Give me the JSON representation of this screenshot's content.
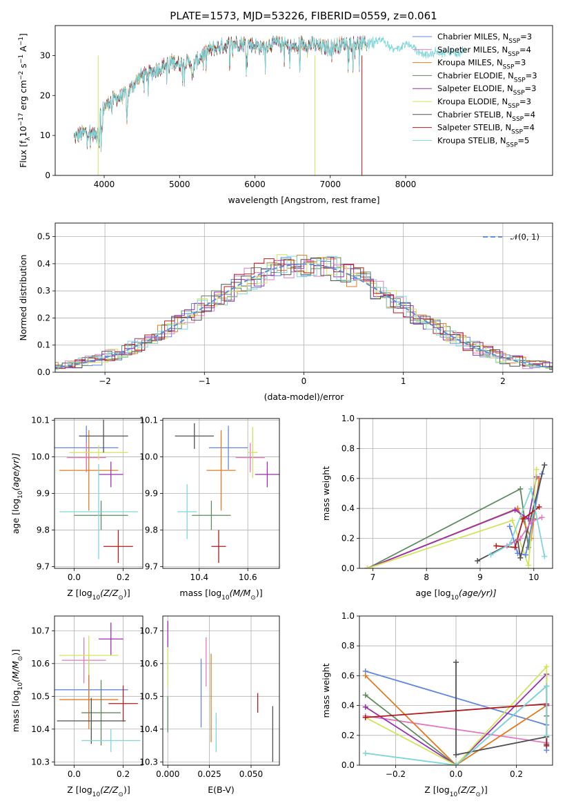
{
  "figure": {
    "title": "PLATE=1573, MJD=53226, FIBERID=0559, z=0.061"
  },
  "colors": {
    "cm": "#6286e6",
    "sm": "#e377c2",
    "km": "#e07b1f",
    "ce": "#5f8a5f",
    "se": "#9b2fae",
    "ke": "#d2e35a",
    "cs": "#505050",
    "ss": "#b01a1a",
    "ks": "#7ed6d9",
    "normal": "#5b8fd6"
  },
  "legend_spectrum": [
    {
      "key": "cm",
      "label": "Chabrier MILES, N",
      "sub": "SSP",
      "suffix": "=3"
    },
    {
      "key": "sm",
      "label": "Salpeter MILES, N",
      "sub": "SSP",
      "suffix": "=4"
    },
    {
      "key": "km",
      "label": "Kroupa MILES, N",
      "sub": "SSP",
      "suffix": "=3"
    },
    {
      "key": "ce",
      "label": "Chabrier ELODIE, N",
      "sub": "SSP",
      "suffix": "=3"
    },
    {
      "key": "se",
      "label": "Salpeter ELODIE, N",
      "sub": "SSP",
      "suffix": "=3"
    },
    {
      "key": "ke",
      "label": "Kroupa ELODIE, N",
      "sub": "SSP",
      "suffix": "=3"
    },
    {
      "key": "cs",
      "label": "Chabrier STELIB, N",
      "sub": "SSP",
      "suffix": "=4"
    },
    {
      "key": "ss",
      "label": "Salpeter STELIB, N",
      "sub": "SSP",
      "suffix": "=4"
    },
    {
      "key": "ks",
      "label": "Kroupa STELIB, N",
      "sub": "SSP",
      "suffix": "=5"
    }
  ],
  "legend_normal": "𝒩(0, 1)",
  "chart_data": [
    {
      "id": "spectrum",
      "type": "line",
      "xlabel": "wavelength [Angstrom, rest frame]",
      "ylabel": "Flux [f",
      "ylabel_sub": "λ",
      "ylabel_rest": "10",
      "ylabel_sup": "−17",
      "ylabel_tail": " erg cm",
      "ylabel_sup2": "−2",
      "ylabel_tail2": " s",
      "ylabel_sup3": "−1",
      "ylabel_tail3": " A",
      "ylabel_sup4": "−1",
      "ylabel_end": "]",
      "xlim": [
        3350,
        9950
      ],
      "ylim": [
        0,
        37.5
      ],
      "xticks": [
        4000,
        5000,
        6000,
        7000,
        8000
      ],
      "yticks": [
        0,
        10,
        20,
        30
      ],
      "xtick_labels": [
        "4000",
        "5000",
        "6000",
        "7000",
        "8000"
      ],
      "ytick_labels": [
        "0",
        "10",
        "20",
        "30"
      ],
      "continuum": [
        [
          3600,
          9.5
        ],
        [
          3700,
          10.5
        ],
        [
          3800,
          11
        ],
        [
          3900,
          10
        ],
        [
          3950,
          15.5
        ],
        [
          4000,
          17
        ],
        [
          4100,
          19
        ],
        [
          4200,
          19.5
        ],
        [
          4300,
          20.5
        ],
        [
          4400,
          23
        ],
        [
          4500,
          25
        ],
        [
          4600,
          25.5
        ],
        [
          4700,
          26.5
        ],
        [
          4800,
          27.5
        ],
        [
          4900,
          28.5
        ],
        [
          5000,
          28
        ],
        [
          5100,
          28.5
        ],
        [
          5200,
          28
        ],
        [
          5300,
          30
        ],
        [
          5400,
          31.5
        ],
        [
          5500,
          32
        ],
        [
          5600,
          32.5
        ],
        [
          5700,
          33
        ],
        [
          5800,
          33
        ],
        [
          5900,
          33
        ],
        [
          6000,
          32.5
        ],
        [
          6100,
          32
        ],
        [
          6200,
          33
        ],
        [
          6300,
          33
        ],
        [
          6400,
          32.5
        ],
        [
          6500,
          32
        ],
        [
          6600,
          33
        ],
        [
          6700,
          33
        ],
        [
          6800,
          32.5
        ],
        [
          6900,
          32
        ],
        [
          7000,
          32
        ],
        [
          7100,
          32.5
        ],
        [
          7200,
          33
        ],
        [
          7300,
          33
        ],
        [
          7400,
          33
        ],
        [
          7500,
          33
        ],
        [
          7600,
          34
        ],
        [
          7700,
          33.5
        ],
        [
          7800,
          32
        ],
        [
          7900,
          31.5
        ],
        [
          8000,
          33
        ],
        [
          8100,
          32
        ],
        [
          8200,
          30.5
        ],
        [
          8300,
          30
        ],
        [
          8400,
          31
        ],
        [
          8500,
          30.5
        ],
        [
          8600,
          31
        ],
        [
          8700,
          30.5
        ],
        [
          8800,
          31.5
        ]
      ],
      "spikes": [
        {
          "x": 3920,
          "key": "ke"
        },
        {
          "x": 6795,
          "key": "ke"
        },
        {
          "x": 7420,
          "key": "ss"
        }
      ]
    },
    {
      "id": "residuals",
      "type": "histogram",
      "xlabel": "(data-model)/error",
      "ylabel": "Normed distribution",
      "xlim": [
        -2.5,
        2.5
      ],
      "ylim": [
        0,
        0.55
      ],
      "xticks": [
        -2,
        -1,
        0,
        1,
        2
      ],
      "yticks": [
        0,
        0.1,
        0.2,
        0.3,
        0.4,
        0.5
      ],
      "xtick_labels": [
        "−2",
        "−1",
        "0",
        "1",
        "2"
      ],
      "ytick_labels": [
        "0.0",
        "0.1",
        "0.2",
        "0.3",
        "0.4",
        "0.5"
      ],
      "bin_width": 0.1
    },
    {
      "id": "age_vs_Z",
      "type": "errorbar",
      "xlabel": "Z [log",
      "xlabel_sub": "10",
      "xlabel_rest": "(Z/Z",
      "xlabel_sub2": "⊙",
      "xlabel_end": ")]",
      "ylabel": "age  [log",
      "ylabel_sub": "10",
      "ylabel_rest": "(age/yr)]",
      "xlim": [
        -0.08,
        0.28
      ],
      "ylim": [
        9.695,
        10.105
      ],
      "xticks": [
        0,
        0.2
      ],
      "yticks": [
        9.7,
        9.8,
        9.9,
        10.0,
        10.1
      ],
      "xtick_labels": [
        "0.0",
        "0.2"
      ],
      "ytick_labels": [
        "9.7",
        "9.8",
        "9.9",
        "10.0",
        "10.1"
      ],
      "points": [
        {
          "key": "cm",
          "x": 0.05,
          "xe": 0.13,
          "y": 10.025,
          "ye": 0.06
        },
        {
          "key": "sm",
          "x": 0.05,
          "xe": 0.08,
          "y": 9.998,
          "ye": 0.04
        },
        {
          "key": "km",
          "x": 0.06,
          "xe": 0.12,
          "y": 9.963,
          "ye": 0.11
        },
        {
          "key": "ce",
          "x": 0.11,
          "xe": 0.11,
          "y": 9.84,
          "ye": 0.04
        },
        {
          "key": "se",
          "x": 0.15,
          "xe": 0.05,
          "y": 9.952,
          "ye": 0.035
        },
        {
          "key": "ke",
          "x": 0.1,
          "xe": 0.12,
          "y": 10.012,
          "ye": 0.02
        },
        {
          "key": "cs",
          "x": 0.12,
          "xe": 0.1,
          "y": 10.057,
          "ye": 0.045
        },
        {
          "key": "ss",
          "x": 0.18,
          "xe": 0.06,
          "y": 9.755,
          "ye": 0.045
        },
        {
          "key": "ks",
          "x": 0.1,
          "xe": 0.16,
          "y": 9.85,
          "ye": 0.13
        }
      ]
    },
    {
      "id": "age_vs_mass",
      "type": "errorbar",
      "xlabel": "mass [log",
      "xlabel_sub": "10",
      "xlabel_rest": "(M/M",
      "xlabel_sub2": "⊙",
      "xlabel_end": ")]",
      "xlim": [
        10.25,
        10.73
      ],
      "ylim": [
        9.695,
        10.105
      ],
      "xticks": [
        10.4,
        10.6
      ],
      "yticks": [
        9.7,
        9.8,
        9.9,
        10.0,
        10.1
      ],
      "xtick_labels": [
        "10.4",
        "10.6"
      ],
      "ytick_labels": [
        "9.7",
        "9.8",
        "9.9",
        "10.0",
        "10.1"
      ],
      "points": [
        {
          "key": "cm",
          "x": 10.52,
          "xe": 0.08,
          "y": 10.025,
          "ye": 0.06
        },
        {
          "key": "sm",
          "x": 10.61,
          "xe": 0.06,
          "y": 9.998,
          "ye": 0.04
        },
        {
          "key": "km",
          "x": 10.49,
          "xe": 0.06,
          "y": 9.963,
          "ye": 0.11
        },
        {
          "key": "ce",
          "x": 10.45,
          "xe": 0.08,
          "y": 9.84,
          "ye": 0.04
        },
        {
          "key": "se",
          "x": 10.68,
          "xe": 0.05,
          "y": 9.952,
          "ye": 0.035
        },
        {
          "key": "ke",
          "x": 10.62,
          "xe": 0.02,
          "y": 10.012,
          "ye": 0.07
        },
        {
          "key": "cs",
          "x": 10.38,
          "xe": 0.08,
          "y": 10.057,
          "ye": 0.035
        },
        {
          "key": "ss",
          "x": 10.48,
          "xe": 0.03,
          "y": 9.755,
          "ye": 0.045
        },
        {
          "key": "ks",
          "x": 10.35,
          "xe": 0.04,
          "y": 9.85,
          "ye": 0.075
        }
      ]
    },
    {
      "id": "weight_vs_age",
      "type": "line",
      "xlabel": "age  [log",
      "xlabel_sub": "10",
      "xlabel_rest": "(age/yr)]",
      "ylabel": "mass weight",
      "xlim": [
        6.75,
        10.35
      ],
      "ylim": [
        0,
        1
      ],
      "xticks": [
        7,
        8,
        9,
        10
      ],
      "yticks": [
        0,
        0.2,
        0.4,
        0.6,
        0.8,
        1.0
      ],
      "xtick_labels": [
        "7",
        "8",
        "9",
        "10"
      ],
      "ytick_labels": [
        "0.0",
        "0.2",
        "0.4",
        "0.6",
        "0.8",
        "1.0"
      ],
      "series": [
        {
          "key": "ce",
          "x": [
            6.9,
            9.75,
            9.9,
            10.0
          ],
          "y": [
            0.0,
            0.53,
            0.14,
            0.33
          ]
        },
        {
          "key": "km",
          "x": [
            6.9,
            9.7,
            9.95,
            10.1
          ],
          "y": [
            0.0,
            0.4,
            0.2,
            0.6
          ]
        },
        {
          "key": "se",
          "x": [
            6.9,
            9.65,
            9.9,
            10.05
          ],
          "y": [
            0.0,
            0.39,
            0.33,
            0.61
          ]
        },
        {
          "key": "ke",
          "x": [
            6.9,
            9.6,
            9.9,
            10.05
          ],
          "y": [
            0.0,
            0.32,
            0.02,
            0.66
          ]
        },
        {
          "key": "cm",
          "x": [
            9.55,
            9.7,
            9.85,
            10.15
          ],
          "y": [
            0.28,
            0.1,
            0.09,
            0.63
          ]
        },
        {
          "key": "cs",
          "x": [
            8.95,
            9.7,
            9.75,
            10.2
          ],
          "y": [
            0.05,
            0.19,
            0.07,
            0.69
          ]
        },
        {
          "key": "ss",
          "x": [
            9.3,
            9.65,
            9.8,
            10.1
          ],
          "y": [
            0.15,
            0.14,
            0.33,
            0.41
          ]
        },
        {
          "key": "sm",
          "x": [
            9.5,
            9.75,
            9.95,
            10.15
          ],
          "y": [
            0.15,
            0.2,
            0.31,
            0.34
          ]
        },
        {
          "key": "ks",
          "x": [
            9.2,
            9.55,
            9.95,
            10.2
          ],
          "y": [
            0.09,
            0.16,
            0.53,
            0.08
          ]
        }
      ]
    },
    {
      "id": "mass_vs_Z",
      "type": "errorbar",
      "xlabel": "Z [log",
      "xlabel_sub": "10",
      "xlabel_rest": "(Z/Z",
      "xlabel_sub2": "⊙",
      "xlabel_end": ")]",
      "ylabel": "mass [log",
      "ylabel_sub": "10",
      "ylabel_rest": "(M/M",
      "ylabel_sub2": "⊙",
      "ylabel_end": ")]",
      "xlim": [
        -0.08,
        0.28
      ],
      "ylim": [
        10.29,
        10.745
      ],
      "xticks": [
        0,
        0.2
      ],
      "yticks": [
        10.3,
        10.4,
        10.5,
        10.6,
        10.7
      ],
      "xtick_labels": [
        "0.0",
        "0.2"
      ],
      "ytick_labels": [
        "10.3",
        "10.4",
        "10.5",
        "10.6",
        "10.7"
      ],
      "points": [
        {
          "key": "cm",
          "x": 0.06,
          "xe": 0.16,
          "y": 10.52,
          "ye": 0.1
        },
        {
          "key": "sm",
          "x": 0.04,
          "xe": 0.09,
          "y": 10.61,
          "ye": 0.07
        },
        {
          "key": "km",
          "x": 0.06,
          "xe": 0.12,
          "y": 10.49,
          "ye": 0.09
        },
        {
          "key": "ce",
          "x": 0.11,
          "xe": 0.08,
          "y": 10.45,
          "ye": 0.1
        },
        {
          "key": "se",
          "x": 0.15,
          "xe": 0.05,
          "y": 10.675,
          "ye": 0.05
        },
        {
          "key": "ke",
          "x": 0.06,
          "xe": 0.12,
          "y": 10.625,
          "ye": 0.06
        },
        {
          "key": "cs",
          "x": 0.07,
          "xe": 0.14,
          "y": 10.425,
          "ye": 0.07
        },
        {
          "key": "ss",
          "x": 0.2,
          "xe": 0.06,
          "y": 10.478,
          "ye": 0.055
        },
        {
          "key": "ks",
          "x": 0.15,
          "xe": 0.12,
          "y": 10.365,
          "ye": 0.035
        }
      ]
    },
    {
      "id": "mass_vs_ebv",
      "type": "errorbar",
      "xlabel": "E(B-V)",
      "xlim": [
        -0.003,
        0.067
      ],
      "ylim": [
        10.29,
        10.745
      ],
      "xticks": [
        0,
        0.025,
        0.05
      ],
      "yticks": [
        10.3,
        10.4,
        10.5,
        10.6,
        10.7
      ],
      "xtick_labels": [
        "0.000",
        "0.025",
        "0.050"
      ],
      "ytick_labels": [
        "10.3",
        "10.4",
        "10.5",
        "10.6",
        "10.7"
      ],
      "points": [
        {
          "key": "cm",
          "x": 0.02,
          "y": 10.51,
          "ye": 0.105
        },
        {
          "key": "sm",
          "x": 0.023,
          "y": 10.605,
          "ye": 0.075
        },
        {
          "key": "km",
          "x": 0.026,
          "y": 10.495,
          "ye": 0.135
        },
        {
          "key": "ce",
          "x": 0.0,
          "y": 10.445,
          "ye": 0.055
        },
        {
          "key": "se",
          "x": 0.0,
          "y": 10.69,
          "ye": 0.04
        },
        {
          "key": "ke",
          "x": 0.0,
          "y": 10.59,
          "ye": 0.06
        },
        {
          "key": "cs",
          "x": 0.063,
          "y": 10.385,
          "ye": 0.085
        },
        {
          "key": "ss",
          "x": 0.054,
          "y": 10.48,
          "ye": 0.03
        },
        {
          "key": "ks",
          "x": 0.029,
          "y": 10.39,
          "ye": 0.06
        }
      ]
    },
    {
      "id": "weight_vs_Z",
      "type": "line",
      "xlabel": "Z [log",
      "xlabel_sub": "10",
      "xlabel_rest": "(Z/Z",
      "xlabel_sub2": "⊙",
      "xlabel_end": ")]",
      "ylabel": "mass weight",
      "xlim": [
        -0.32,
        0.32
      ],
      "ylim": [
        0,
        1
      ],
      "xticks": [
        -0.2,
        0,
        0.2
      ],
      "yticks": [
        0,
        0.2,
        0.4,
        0.6,
        0.8,
        1.0
      ],
      "xtick_labels": [
        "−0.2",
        "0.0",
        "0.2"
      ],
      "ytick_labels": [
        "0.0",
        "0.2",
        "0.4",
        "0.6",
        "0.8",
        "1.0"
      ],
      "series": [
        {
          "key": "cm",
          "x": [
            -0.3,
            0.3,
            0.3
          ],
          "y": [
            0.63,
            0.27,
            0.1
          ]
        },
        {
          "key": "sm",
          "x": [
            -0.3,
            0.3,
            0.3
          ],
          "y": [
            0.33,
            0.15,
            0.13
          ]
        },
        {
          "key": "km",
          "x": [
            -0.3,
            0.0,
            0.3
          ],
          "y": [
            0.6,
            0.0,
            0.4
          ]
        },
        {
          "key": "ce",
          "x": [
            -0.3,
            0.0,
            0.3,
            0.3
          ],
          "y": [
            0.47,
            0.0,
            0.53,
            0.33
          ]
        },
        {
          "key": "se",
          "x": [
            -0.3,
            0.0,
            0.3,
            0.3
          ],
          "y": [
            0.39,
            0.0,
            0.61,
            0.4
          ]
        },
        {
          "key": "ke",
          "x": [
            -0.3,
            0.0,
            0.3,
            0.3
          ],
          "y": [
            0.32,
            0.0,
            0.66,
            0.2
          ]
        },
        {
          "key": "cs",
          "x": [
            0.0,
            0.0,
            0.3,
            0.3
          ],
          "y": [
            0.69,
            0.07,
            0.19,
            0.14
          ]
        },
        {
          "key": "ss",
          "x": [
            -0.3,
            0.3,
            0.3
          ],
          "y": [
            0.32,
            0.41,
            0.13
          ]
        },
        {
          "key": "ks",
          "x": [
            -0.3,
            0.0,
            0.3,
            0.3
          ],
          "y": [
            0.08,
            0.0,
            0.53,
            0.2
          ]
        }
      ]
    }
  ]
}
